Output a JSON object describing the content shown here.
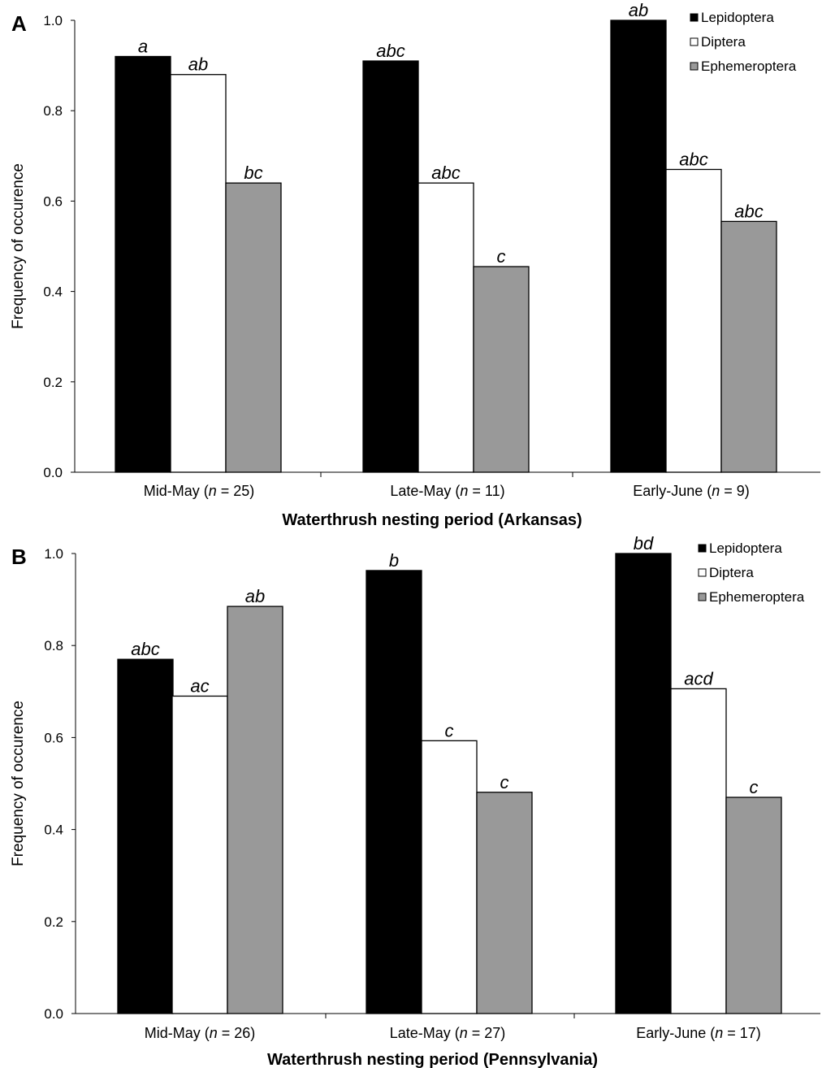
{
  "colors": {
    "Lepidoptera": "#000000",
    "Diptera": "#ffffff",
    "Ephemeroptera": "#999999"
  },
  "chart_data": [
    {
      "panel": "A",
      "type": "bar",
      "ylabel": "Frequency of occurence",
      "xlabel": "Waterthrush nesting period (Arkansas)",
      "ylim": [
        0,
        1.0
      ],
      "yticks": [
        "0.0",
        "0.2",
        "0.4",
        "0.6",
        "0.8",
        "1.0"
      ],
      "grid": false,
      "legend_position": "top-right",
      "categories": [
        {
          "label": "Mid-May",
          "n": "25"
        },
        {
          "label": "Late-May",
          "n": "11"
        },
        {
          "label": "Early-June",
          "n": "9"
        }
      ],
      "series": [
        {
          "name": "Lepidoptera",
          "values": [
            0.92,
            0.91,
            1.0
          ],
          "letters": [
            "a",
            "abc",
            "ab"
          ]
        },
        {
          "name": "Diptera",
          "values": [
            0.88,
            0.64,
            0.67
          ],
          "letters": [
            "ab",
            "abc",
            "abc"
          ]
        },
        {
          "name": "Ephemeroptera",
          "values": [
            0.64,
            0.455,
            0.555
          ],
          "letters": [
            "bc",
            "c",
            "abc"
          ]
        }
      ]
    },
    {
      "panel": "B",
      "type": "bar",
      "ylabel": "Frequency of occurence",
      "xlabel": "Waterthrush nesting period (Pennsylvania)",
      "ylim": [
        0,
        1.0
      ],
      "yticks": [
        "0.0",
        "0.2",
        "0.4",
        "0.6",
        "0.8",
        "1.0"
      ],
      "grid": false,
      "legend_position": "top-right",
      "categories": [
        {
          "label": "Mid-May",
          "n": "26"
        },
        {
          "label": "Late-May",
          "n": "27"
        },
        {
          "label": "Early-June",
          "n": "17"
        }
      ],
      "series": [
        {
          "name": "Lepidoptera",
          "values": [
            0.77,
            0.963,
            1.0
          ],
          "letters": [
            "abc",
            "b",
            "bd"
          ]
        },
        {
          "name": "Diptera",
          "values": [
            0.69,
            0.593,
            0.706
          ],
          "letters": [
            "ac",
            "c",
            "acd"
          ]
        },
        {
          "name": "Ephemeroptera",
          "values": [
            0.885,
            0.481,
            0.47
          ],
          "letters": [
            "ab",
            "c",
            "c"
          ]
        }
      ]
    }
  ]
}
